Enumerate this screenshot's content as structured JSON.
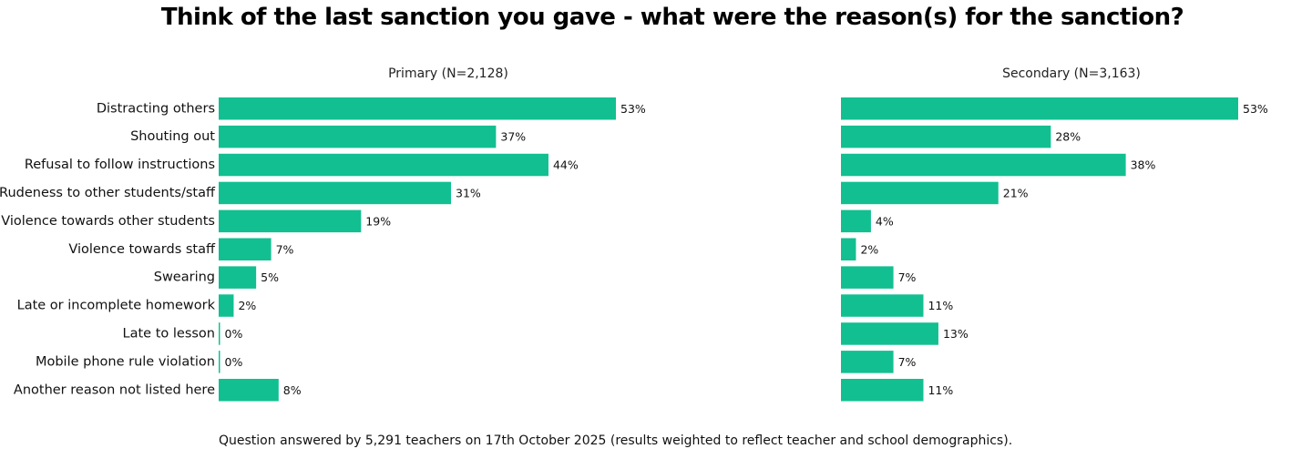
{
  "title": "Think of the last sanction you gave - what were the reason(s) for the sanction?",
  "footnote": "Question answered by 5,291 teachers on 17th October 2025 (results weighted to reflect teacher and school demographics).",
  "colors": {
    "bar": "#12BF90"
  },
  "chart_data": {
    "type": "bar",
    "orientation": "horizontal",
    "categories": [
      "Distracting others",
      "Shouting out",
      "Refusal to follow instructions",
      "Rudeness to other students/staff",
      "Violence towards other students",
      "Violence towards staff",
      "Swearing",
      "Late or incomplete homework",
      "Late to lesson",
      "Mobile phone rule violation",
      "Another reason not listed here"
    ],
    "unit": "%",
    "xlim": [
      0,
      53
    ],
    "grid": false,
    "legend": "none",
    "series": [
      {
        "name": "Primary (N=2,128)",
        "values": [
          53,
          37,
          44,
          31,
          19,
          7,
          5,
          2,
          0,
          0,
          8
        ]
      },
      {
        "name": "Secondary (N=3,163)",
        "values": [
          53,
          28,
          38,
          21,
          4,
          2,
          7,
          11,
          13,
          7,
          11
        ]
      }
    ]
  }
}
